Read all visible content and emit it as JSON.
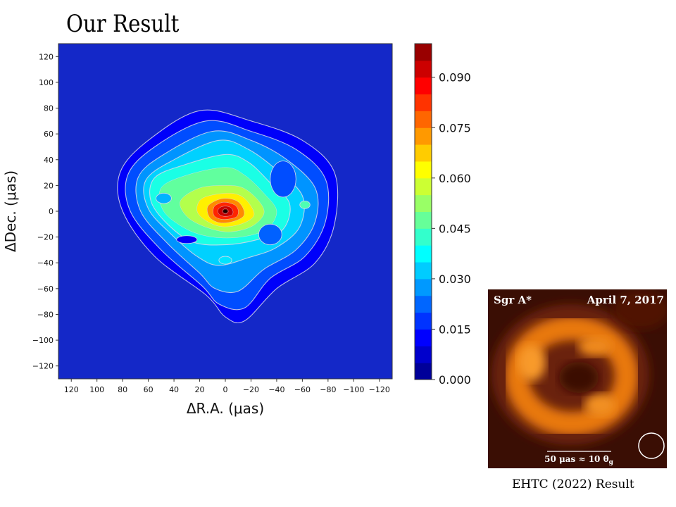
{
  "chart_data": [
    {
      "type": "heatmap",
      "title": "Our Result",
      "xlabel": "ΔR.A. (μas)",
      "ylabel": "ΔDec. (μas)",
      "xlim": [
        130,
        -130
      ],
      "ylim": [
        -130,
        130
      ],
      "x_ticks": [
        120,
        100,
        80,
        60,
        40,
        20,
        0,
        -20,
        -40,
        -60,
        -80,
        -100,
        -120
      ],
      "y_ticks": [
        120,
        100,
        80,
        60,
        40,
        20,
        0,
        -20,
        -40,
        -60,
        -80,
        -100,
        -120
      ],
      "colorbar": {
        "range": [
          0.0,
          0.1
        ],
        "ticks": [
          0.0,
          0.015,
          0.03,
          0.045,
          0.06,
          0.075,
          0.09
        ],
        "tick_labels": [
          "0.000",
          "0.015",
          "0.030",
          "0.045",
          "0.060",
          "0.075",
          "0.090"
        ],
        "levels": 20,
        "colormap": "jet"
      },
      "features": {
        "peak": {
          "x": 0,
          "y": 0,
          "value": 0.1
        },
        "background_value": 0.005
      }
    },
    {
      "type": "image",
      "source_label": "Sgr A*",
      "date_label": "April 7, 2017",
      "scale_label": "50 μas ≈ 10 θ",
      "scale_subscript": "g",
      "caption": "EHTC (2022) Result"
    }
  ],
  "colors": {
    "background_field": "#1428c8",
    "peak": "#8b0000",
    "contour_line": "#d8d8e8",
    "inset_dark": "#3a0e04",
    "inset_ring": "#e07010"
  }
}
